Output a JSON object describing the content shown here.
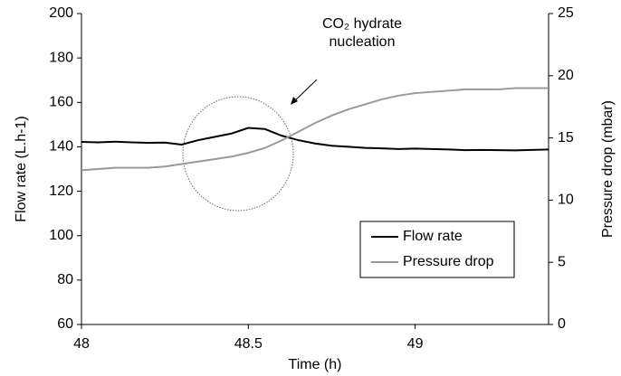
{
  "chart_data": {
    "type": "line",
    "x_label": "Time (h)",
    "y_label": "Flow rate (L.h-1)",
    "y2_label": "Pressure drop (mbar)",
    "annotation": [
      "CO₂ hydrate",
      "nucleation"
    ],
    "x": [
      48.0,
      48.05,
      48.1,
      48.15,
      48.2,
      48.25,
      48.3,
      48.35,
      48.4,
      48.45,
      48.5,
      48.55,
      48.6,
      48.65,
      48.7,
      48.75,
      48.8,
      48.85,
      48.9,
      48.95,
      49.0,
      49.05,
      49.1,
      49.15,
      49.2,
      49.25,
      49.3,
      49.35,
      49.4
    ],
    "series": [
      {
        "name": "Flow rate",
        "color": "#000000",
        "values": [
          142.2,
          142.0,
          142.3,
          142.0,
          141.8,
          141.9,
          141.0,
          143.0,
          144.5,
          146.0,
          148.5,
          148.0,
          145.0,
          143.0,
          141.5,
          140.5,
          140.0,
          139.5,
          139.3,
          139.0,
          139.2,
          139.0,
          138.8,
          138.5,
          138.6,
          138.5,
          138.4,
          138.6,
          138.8
        ]
      },
      {
        "name": "Pressure drop",
        "color": "#999999",
        "axis": "y2",
        "values": [
          12.4,
          12.5,
          12.6,
          12.6,
          12.6,
          12.7,
          12.9,
          13.1,
          13.3,
          13.5,
          13.8,
          14.2,
          14.8,
          15.5,
          16.2,
          16.8,
          17.3,
          17.7,
          18.1,
          18.4,
          18.6,
          18.7,
          18.8,
          18.9,
          18.9,
          18.9,
          19.0,
          19.0,
          19.0
        ]
      }
    ],
    "xlim": [
      48,
      49.4
    ],
    "xticks": [
      48,
      48.5,
      49
    ],
    "ylim": [
      60,
      200
    ],
    "yticks": [
      60,
      80,
      100,
      120,
      140,
      160,
      180,
      200
    ],
    "y2lim": [
      0,
      25
    ],
    "y2ticks": [
      0,
      5,
      10,
      15,
      20,
      25
    ],
    "grid": false,
    "legend": "lower right"
  }
}
